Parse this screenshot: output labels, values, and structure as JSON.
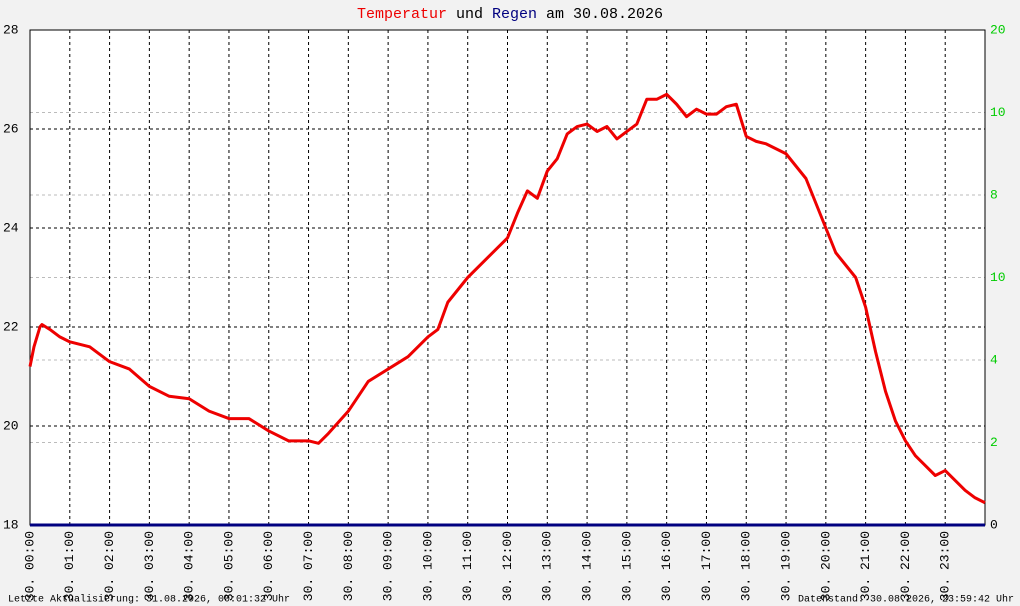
{
  "chart_data": {
    "type": "line",
    "title_joiner": "und",
    "title_date": "am 30.08.2026",
    "xlim": [
      0,
      24
    ],
    "xticks": [
      {
        "value": 0,
        "label": "30. 00:00"
      },
      {
        "value": 1,
        "label": "30. 01:00"
      },
      {
        "value": 2,
        "label": "30. 02:00"
      },
      {
        "value": 3,
        "label": "30. 03:00"
      },
      {
        "value": 4,
        "label": "30. 04:00"
      },
      {
        "value": 5,
        "label": "30. 05:00"
      },
      {
        "value": 6,
        "label": "30. 06:00"
      },
      {
        "value": 7,
        "label": "30. 07:00"
      },
      {
        "value": 8,
        "label": "30. 08:00"
      },
      {
        "value": 9,
        "label": "30. 09:00"
      },
      {
        "value": 10,
        "label": "30. 10:00"
      },
      {
        "value": 11,
        "label": "30. 11:00"
      },
      {
        "value": 12,
        "label": "30. 12:00"
      },
      {
        "value": 13,
        "label": "30. 13:00"
      },
      {
        "value": 14,
        "label": "30. 14:00"
      },
      {
        "value": 15,
        "label": "30. 15:00"
      },
      {
        "value": 16,
        "label": "30. 16:00"
      },
      {
        "value": 17,
        "label": "30. 17:00"
      },
      {
        "value": 18,
        "label": "30. 18:00"
      },
      {
        "value": 19,
        "label": "30. 19:00"
      },
      {
        "value": 20,
        "label": "30. 20:00"
      },
      {
        "value": 21,
        "label": "30. 21:00"
      },
      {
        "value": 22,
        "label": "30. 22:00"
      },
      {
        "value": 23,
        "label": "30. 23:00"
      }
    ],
    "ylim": [
      18,
      28
    ],
    "yticks": [
      18,
      20,
      22,
      24,
      26,
      28
    ],
    "right_axis_labels": [
      "0",
      "2",
      "4",
      "10",
      "8",
      "10",
      "20"
    ],
    "grid": true,
    "series": [
      {
        "name": "Temperatur",
        "color": "#ee0000",
        "x": [
          0,
          0.1,
          0.25,
          0.3,
          0.5,
          0.75,
          1,
          1.5,
          2,
          2.5,
          3,
          3.5,
          4,
          4.5,
          5,
          5.5,
          6,
          6.5,
          7,
          7.25,
          7.5,
          8,
          8.5,
          9,
          9.5,
          10,
          10.25,
          10.5,
          11,
          11.5,
          12,
          12.25,
          12.5,
          12.75,
          13,
          13.25,
          13.5,
          13.75,
          14,
          14.25,
          14.5,
          14.75,
          15,
          15.25,
          15.5,
          15.75,
          16,
          16.25,
          16.5,
          16.75,
          17,
          17.25,
          17.5,
          17.75,
          18,
          18.25,
          18.5,
          19,
          19.5,
          20,
          20.25,
          20.5,
          20.75,
          21,
          21.25,
          21.5,
          21.75,
          22,
          22.25,
          22.5,
          22.75,
          23,
          23.25,
          23.5,
          23.75,
          24
        ],
        "values": [
          21.2,
          21.6,
          22.0,
          22.05,
          21.95,
          21.8,
          21.7,
          21.6,
          21.3,
          21.15,
          20.8,
          20.6,
          20.55,
          20.3,
          20.15,
          20.15,
          19.9,
          19.7,
          19.7,
          19.65,
          19.85,
          20.3,
          20.9,
          21.15,
          21.4,
          21.8,
          21.95,
          22.5,
          23.0,
          23.4,
          23.8,
          24.3,
          24.75,
          24.6,
          25.15,
          25.4,
          25.9,
          26.05,
          26.1,
          25.95,
          26.05,
          25.8,
          25.95,
          26.1,
          26.6,
          26.6,
          26.7,
          26.5,
          26.25,
          26.4,
          26.3,
          26.3,
          26.45,
          26.5,
          25.85,
          25.75,
          25.7,
          25.5,
          25.0,
          24.0,
          23.5,
          23.25,
          23.0,
          22.4,
          21.5,
          20.7,
          20.1,
          19.7,
          19.4,
          19.2,
          19.0,
          19.1,
          18.9,
          18.7,
          18.55,
          18.45
        ]
      },
      {
        "name": "Regen",
        "color": "#000080",
        "axis": "y2",
        "x": [
          0,
          24
        ],
        "values": [
          0,
          0
        ]
      }
    ],
    "y2lim": [
      0,
      20
    ],
    "footer_left": "Letzte Aktualisierung: 31.08.2026, 00:01:32 Uhr",
    "footer_right": "Datenstand: 30.08.2026, 23:59:42 Uhr"
  }
}
